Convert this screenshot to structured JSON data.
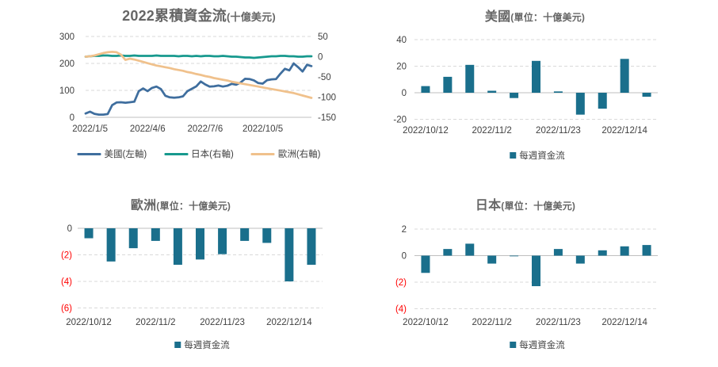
{
  "colors": {
    "us_line": "#3F6E9E",
    "japan_line": "#17998E",
    "europe_line": "#F0C18C",
    "bar_fill": "#1A6F8C",
    "grid": "#D9D9D9",
    "axis_line": "#BFBFBF",
    "title_text": "#666666",
    "tick_text": "#404040",
    "negative_tick_text": "#FF0000",
    "legend_text": "#404040"
  },
  "chart_data": [
    {
      "id": "cumulative-flows",
      "type": "line",
      "title": "2022累積資金流",
      "title_unit": "(十億美元)",
      "x_tick_labels": [
        "2022/1/5",
        "2022/4/6",
        "2022/7/6",
        "2022/10/5"
      ],
      "x_tick_positions": [
        1,
        14,
        27,
        40
      ],
      "n_points": 52,
      "left_axis": {
        "min": 0,
        "max": 300,
        "ticks": [
          300,
          200,
          100,
          0
        ],
        "tick_labels": [
          "300",
          "200",
          "100",
          "0"
        ]
      },
      "right_axis": {
        "min": -150,
        "max": 50,
        "ticks": [
          50,
          0,
          -50,
          -100,
          -150
        ],
        "tick_labels": [
          "50",
          "0",
          "-50",
          "-100",
          "-150"
        ]
      },
      "series": [
        {
          "name": "美國(左軸)",
          "axis": "left",
          "color_key": "us_line",
          "values": [
            14,
            21,
            13,
            10,
            10,
            12,
            45,
            55,
            56,
            54,
            56,
            58,
            97,
            107,
            97,
            109,
            114,
            105,
            80,
            74,
            73,
            74,
            78,
            97,
            106,
            115,
            133,
            122,
            114,
            115,
            118,
            114,
            117,
            124,
            121,
            129,
            143,
            142,
            137,
            127,
            125,
            138,
            141,
            142,
            162,
            180,
            174,
            200,
            186,
            170,
            195,
            190
          ]
        },
        {
          "name": "日本(右軸)",
          "axis": "right",
          "color_key": "japan_line",
          "values": [
            0,
            1,
            2,
            2,
            3,
            3,
            2,
            2,
            3,
            2,
            2,
            3,
            2,
            2,
            2,
            2,
            3,
            2,
            2,
            2,
            2,
            1,
            2,
            2,
            1,
            2,
            1,
            2,
            2,
            1,
            1,
            2,
            1,
            0,
            0,
            -1,
            -2,
            -2,
            -3,
            -2,
            -1,
            0,
            1,
            1,
            2,
            2,
            1,
            1,
            0,
            0,
            1,
            1
          ]
        },
        {
          "name": "歐洲(右軸)",
          "axis": "right",
          "color_key": "europe_line",
          "values": [
            0,
            1,
            3,
            6,
            9,
            11,
            12,
            11,
            5,
            -8,
            -5,
            -7,
            -10,
            -13,
            -16,
            -19,
            -22,
            -24,
            -26,
            -28,
            -31,
            -33,
            -35,
            -38,
            -40,
            -43,
            -45,
            -48,
            -50,
            -53,
            -55,
            -57,
            -59,
            -62,
            -64,
            -66,
            -68,
            -70,
            -72,
            -74,
            -76,
            -78,
            -80,
            -82,
            -84,
            -86,
            -88,
            -90,
            -93,
            -96,
            -99,
            -102
          ]
        }
      ]
    },
    {
      "id": "us-weekly",
      "type": "bar",
      "title": "美國",
      "title_unit": "(單位：十億美元)",
      "legend_label": "每週資金流",
      "x_tick_labels": [
        "2022/10/12",
        "2022/11/2",
        "2022/11/23",
        "2022/12/14"
      ],
      "x_tick_positions": [
        0,
        3,
        6,
        9
      ],
      "y_axis": {
        "min": -20,
        "max": 40,
        "ticks": [
          40,
          20,
          0,
          -20
        ],
        "tick_labels": [
          "40",
          "20",
          "0",
          "-20"
        ]
      },
      "values": [
        5,
        12,
        21,
        1.5,
        -4,
        24,
        1,
        -16.5,
        -12,
        25.5,
        -3
      ]
    },
    {
      "id": "europe-weekly",
      "type": "bar",
      "title": "歐洲",
      "title_unit": "(單位：十億美元)",
      "legend_label": "每週資金流",
      "x_tick_labels": [
        "2022/10/12",
        "2022/11/2",
        "2022/11/23",
        "2022/12/14"
      ],
      "x_tick_positions": [
        0,
        3,
        6,
        9
      ],
      "y_axis": {
        "min": -6,
        "max": 0,
        "ticks": [
          0,
          -2,
          -4,
          -6
        ],
        "tick_labels": [
          "0",
          "(2)",
          "(4)",
          "(6)"
        ]
      },
      "values": [
        -0.75,
        -2.5,
        -1.5,
        -0.95,
        -2.75,
        -2.35,
        -1.95,
        -0.95,
        -1.1,
        -4.0,
        -2.75
      ]
    },
    {
      "id": "japan-weekly",
      "type": "bar",
      "title": "日本",
      "title_unit": "(單位：十億美元)",
      "legend_label": "每週資金流",
      "x_tick_labels": [
        "2022/10/12",
        "2022/11/2",
        "2022/11/23",
        "2022/12/14"
      ],
      "x_tick_positions": [
        0,
        3,
        6,
        9
      ],
      "y_axis": {
        "min": -4,
        "max": 2,
        "ticks": [
          2,
          0,
          -2,
          -4
        ],
        "tick_labels": [
          "2",
          "0",
          "(2)",
          "(4)"
        ]
      },
      "values": [
        -1.3,
        0.5,
        0.9,
        -0.6,
        -0.05,
        -2.3,
        0.5,
        -0.6,
        0.4,
        0.7,
        0.8
      ]
    }
  ]
}
